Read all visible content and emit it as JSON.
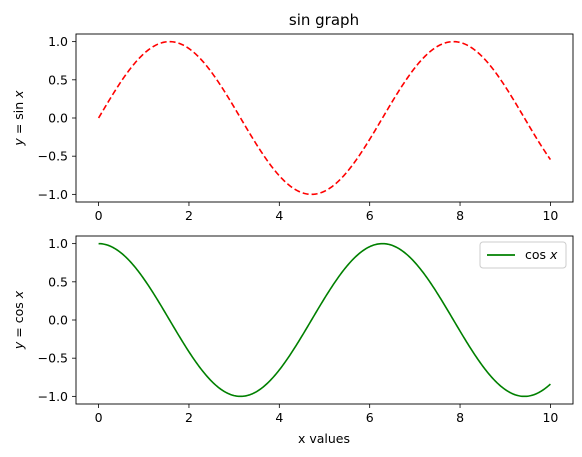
{
  "chart_data": [
    {
      "type": "line",
      "title": "sin graph",
      "xlabel": "",
      "ylabel": "y = sin x",
      "xlim": [
        -0.5,
        10.5
      ],
      "ylim": [
        -1.1,
        1.1
      ],
      "x_ticks": [
        "0",
        "2",
        "4",
        "6",
        "8",
        "10"
      ],
      "y_ticks": [
        "1.0",
        "0.5",
        "0.0",
        "-0.5",
        "-1.0"
      ],
      "grid": false,
      "series": [
        {
          "function": "sin",
          "x_range": [
            0,
            10
          ],
          "color": "#ff0000",
          "style": "dashed",
          "samples": [
            [
              0,
              0
            ],
            [
              1,
              0.841
            ],
            [
              2,
              0.909
            ],
            [
              3,
              0.141
            ],
            [
              4,
              -0.757
            ],
            [
              5,
              -0.959
            ],
            [
              6,
              -0.279
            ],
            [
              7,
              0.657
            ],
            [
              8,
              0.989
            ],
            [
              9,
              0.412
            ],
            [
              10,
              -0.544
            ]
          ]
        }
      ]
    },
    {
      "type": "line",
      "title": "",
      "xlabel": "x values",
      "ylabel": "y = cos x",
      "xlim": [
        -0.5,
        10.5
      ],
      "ylim": [
        -1.1,
        1.1
      ],
      "x_ticks": [
        "0",
        "2",
        "4",
        "6",
        "8",
        "10"
      ],
      "y_ticks": [
        "1.0",
        "0.5",
        "0.0",
        "-0.5",
        "-1.0"
      ],
      "grid": false,
      "legend": {
        "placement": "upper right",
        "entries": [
          "cos x"
        ]
      },
      "series": [
        {
          "name": "cos x",
          "function": "cos",
          "x_range": [
            0,
            10
          ],
          "color": "#008000",
          "style": "solid",
          "samples": [
            [
              0,
              1
            ],
            [
              1,
              0.54
            ],
            [
              2,
              -0.416
            ],
            [
              3,
              -0.99
            ],
            [
              4,
              -0.654
            ],
            [
              5,
              0.284
            ],
            [
              6,
              0.96
            ],
            [
              7,
              0.754
            ],
            [
              8,
              -0.146
            ],
            [
              9,
              -0.911
            ],
            [
              10,
              -0.839
            ]
          ]
        }
      ]
    }
  ]
}
